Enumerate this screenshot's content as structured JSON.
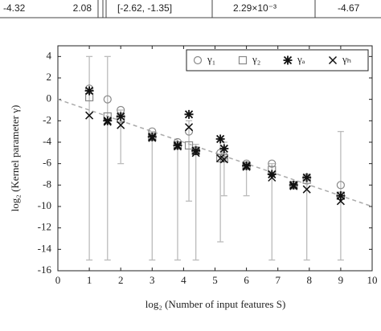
{
  "table": {
    "row": [
      "-4.32",
      "2.08",
      "[-2.62, -1.35]",
      "2.29×10⁻³",
      "-4.67"
    ]
  },
  "chart_data": {
    "type": "scatter",
    "x_label": "log₂ (Number of input features S)",
    "y_label": "log₂ (Kernel parameter γ)",
    "x": [
      1,
      1.58,
      2,
      3,
      3.81,
      4.17,
      4.39,
      5.17,
      5.29,
      6,
      6.81,
      7.5,
      7.92,
      9
    ],
    "series": [
      {
        "name": "γ₁",
        "marker": "circle",
        "color": "#888888",
        "values": [
          1,
          0,
          -1,
          -3,
          -4,
          -3,
          -4.8,
          -5,
          -5.3,
          -6,
          -6,
          -8,
          -7.3,
          -8
        ]
      },
      {
        "name": "γ₂",
        "marker": "square",
        "color": "#888888",
        "values": [
          0.2,
          -1.6,
          -1.8,
          -3.5,
          -4.3,
          -4.3,
          -4.8,
          -5.5,
          -5.5,
          -6.2,
          -6.6,
          -8,
          -7.5,
          -9
        ]
      },
      {
        "name": "γₐ",
        "marker": "asterisk",
        "color": "#111111",
        "values": [
          0.8,
          -2,
          -1.6,
          -3.5,
          -4.3,
          -1.4,
          -4.8,
          -3.7,
          -4.6,
          -6.2,
          -7,
          -8,
          -7.3,
          -9
        ]
      },
      {
        "name": "γₕ",
        "marker": "cross",
        "color": "#111111",
        "values": [
          -1.5,
          -2.1,
          -2.4,
          -3.6,
          -4.4,
          -2.6,
          -5,
          -5.5,
          -5.6,
          -6.3,
          -7.3,
          -8.1,
          -8.4,
          -9.5
        ]
      }
    ],
    "error_low": [
      -15,
      -15,
      -6,
      -15,
      -15,
      -9.5,
      -15,
      -13.3,
      -9,
      -9,
      -15,
      -8,
      -15,
      -15
    ],
    "error_high": [
      4,
      4,
      -1,
      -3,
      -4,
      -2,
      -4.2,
      -3.8,
      -4,
      -6,
      -6,
      -8,
      -7.2,
      -3
    ],
    "error_color": "#bbbbbb",
    "trend": {
      "x": [
        0,
        10
      ],
      "y": [
        0,
        -10
      ],
      "color": "#aaaaaa"
    },
    "xlim": [
      0,
      10
    ],
    "ylim": [
      -16,
      5
    ],
    "xticks": [
      0,
      1,
      2,
      3,
      4,
      5,
      6,
      7,
      8,
      9,
      10
    ],
    "yticks": [
      -16,
      -14,
      -12,
      -10,
      -8,
      -6,
      -4,
      -2,
      0,
      2,
      4
    ],
    "legend": "top-right"
  }
}
